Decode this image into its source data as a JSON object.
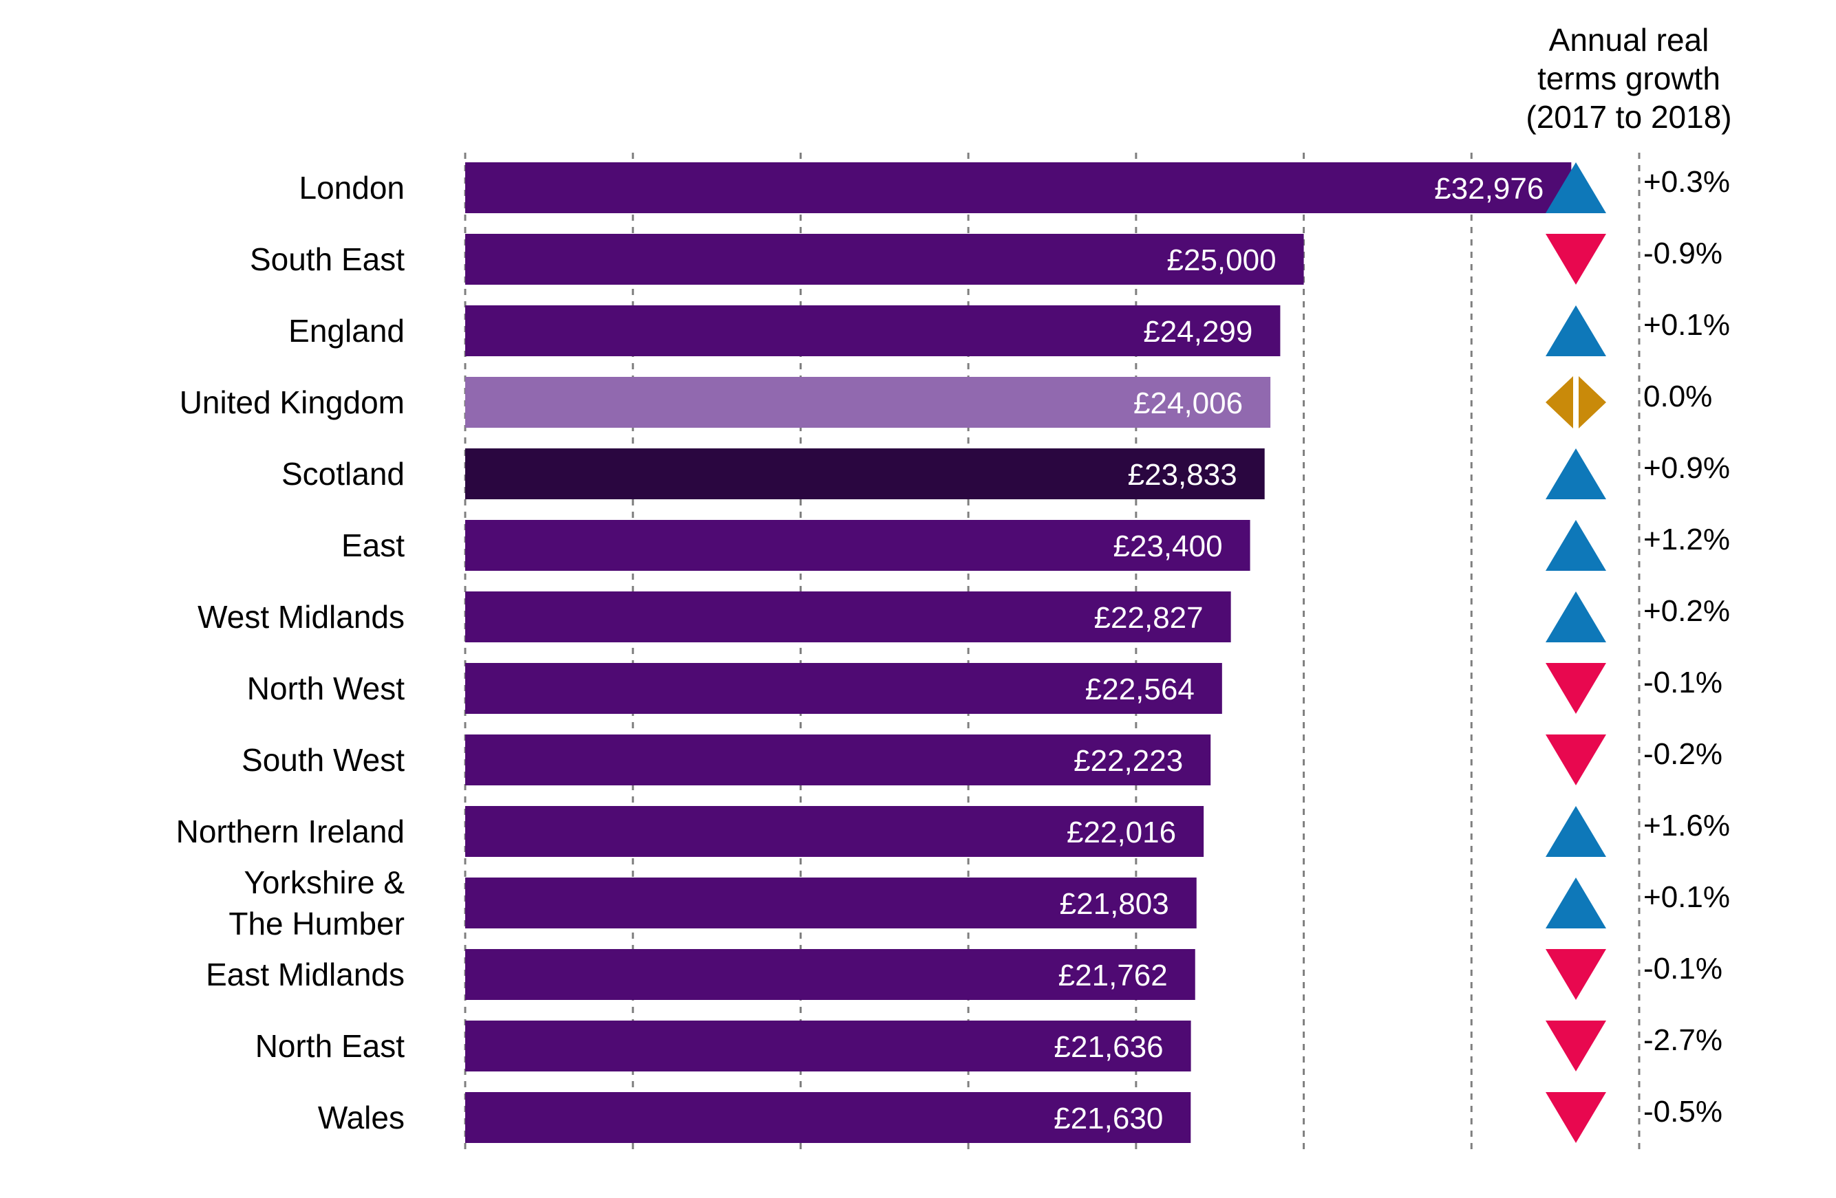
{
  "chart_data": {
    "type": "bar",
    "orientation": "horizontal",
    "categories": [
      "London",
      "South East",
      "England",
      "United Kingdom",
      "Scotland",
      "East",
      "West Midlands",
      "North West",
      "South West",
      "Northern Ireland",
      "Yorkshire & The Humber",
      "East Midlands",
      "North East",
      "Wales"
    ],
    "category_lines": [
      [
        "London"
      ],
      [
        "South East"
      ],
      [
        "England"
      ],
      [
        "United Kingdom"
      ],
      [
        "Scotland"
      ],
      [
        "East"
      ],
      [
        "West Midlands"
      ],
      [
        "North West"
      ],
      [
        "South West"
      ],
      [
        "Northern Ireland"
      ],
      [
        "Yorkshire &",
        "The Humber"
      ],
      [
        "East Midlands"
      ],
      [
        "North East"
      ],
      [
        "Wales"
      ]
    ],
    "values": [
      32976,
      25000,
      24299,
      24006,
      23833,
      23400,
      22827,
      22564,
      22223,
      22016,
      21803,
      21762,
      21636,
      21630
    ],
    "value_labels": [
      "£32,976",
      "£25,000",
      "£24,299",
      "£24,006",
      "£23,833",
      "£23,400",
      "£22,827",
      "£22,564",
      "£22,223",
      "£22,016",
      "£21,803",
      "£21,762",
      "£21,636",
      "£21,630"
    ],
    "bar_colors": [
      "#4f0a73",
      "#4f0a73",
      "#4f0a73",
      "#9169af",
      "#2a0640",
      "#4f0a73",
      "#4f0a73",
      "#4f0a73",
      "#4f0a73",
      "#4f0a73",
      "#4f0a73",
      "#4f0a73",
      "#4f0a73",
      "#4f0a73"
    ],
    "xlim": [
      0,
      35000
    ],
    "grid_step": 5000,
    "grid": true,
    "growth_header_lines": [
      "Annual real",
      "terms growth",
      "(2017 to 2018)"
    ],
    "growth_labels": [
      "+0.3%",
      "-0.9%",
      "+0.1%",
      "0.0%",
      "+0.9%",
      "+1.2%",
      "+0.2%",
      "-0.1%",
      "-0.2%",
      "+1.6%",
      "+0.1%",
      "-0.1%",
      "-2.7%",
      "-0.5%"
    ],
    "growth_direction": [
      "up",
      "down",
      "up",
      "flat",
      "up",
      "up",
      "up",
      "down",
      "down",
      "up",
      "up",
      "down",
      "down",
      "down"
    ],
    "colors": {
      "up": "#0e78b9",
      "down": "#e8084f",
      "flat": "#c98a0a",
      "bar_label_text": "#ffffff",
      "grid": "#7f7f7f",
      "text": "#000000"
    }
  }
}
